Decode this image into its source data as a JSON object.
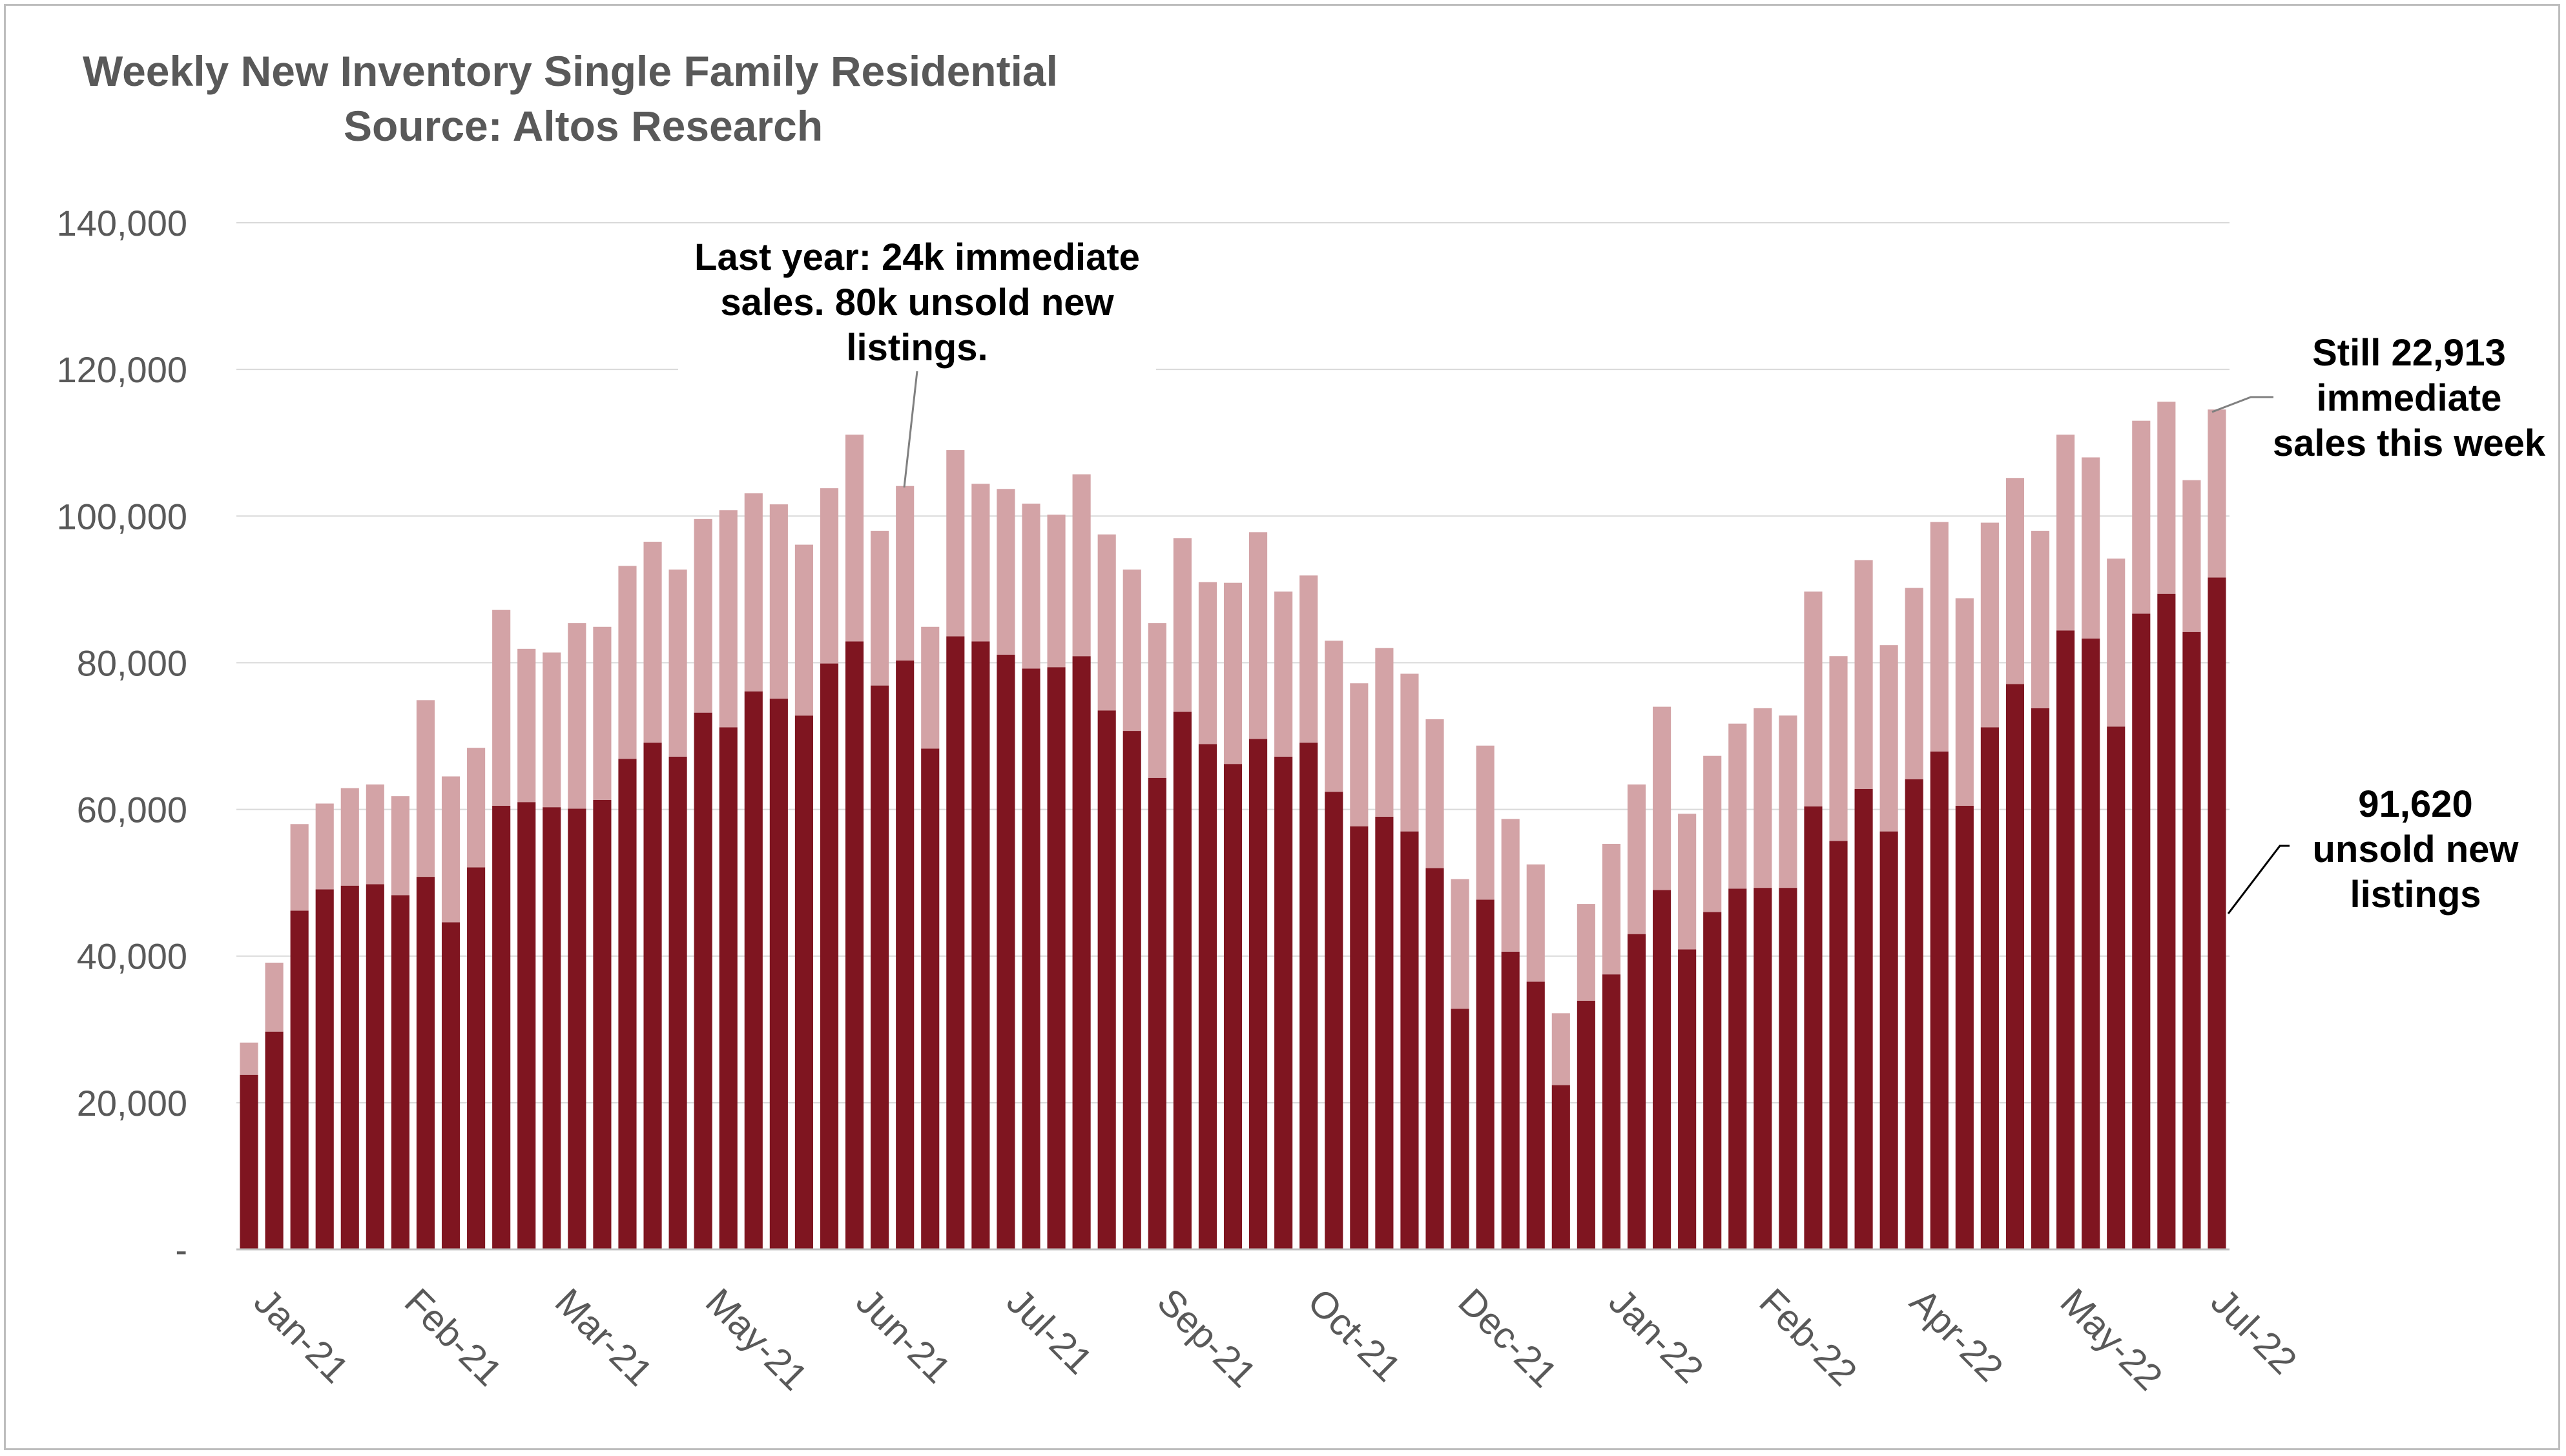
{
  "chart_data": {
    "type": "bar",
    "stacked": true,
    "title": "Weekly New Inventory Single Family Residential",
    "subtitle": "Source: Altos Research",
    "xlabel": "",
    "ylabel": "",
    "ylim": [
      0,
      140000
    ],
    "y_ticks": [
      "-",
      "20,000",
      "40,000",
      "60,000",
      "80,000",
      "100,000",
      "120,000",
      "140,000"
    ],
    "x_tick_labels": [
      "Jan-21",
      "Feb-21",
      "Mar-21",
      "May-21",
      "Jun-21",
      "Jul-21",
      "Sep-21",
      "Oct-21",
      "Dec-21",
      "Jan-22",
      "Feb-22",
      "Apr-22",
      "May-22",
      "Jul-22"
    ],
    "grid": true,
    "legend": "none",
    "colors": {
      "unsold": "#7f1520",
      "immediate": "#d3a3a6",
      "grid": "#d9d9d9",
      "axis_text": "#595959"
    },
    "series": [
      {
        "key": "unsold",
        "values": [
          23800,
          29700,
          46200,
          49100,
          49600,
          49800,
          48300,
          50800,
          44600,
          52100,
          60500,
          61000,
          60300,
          60100,
          61300,
          66900,
          69100,
          67200,
          73200,
          71200,
          76100,
          75100,
          72800,
          79900,
          82900,
          76900,
          80300,
          68300,
          83600,
          82900,
          81100,
          79200,
          79400,
          80900,
          73500,
          70700,
          64300,
          73300,
          68900,
          66200,
          69600,
          67200,
          69100,
          62400,
          57700,
          59000,
          57000,
          52000,
          32800,
          47700,
          40600,
          36500,
          22400,
          33900,
          37500,
          43000,
          49000,
          40900,
          46000,
          49200,
          49300,
          49300,
          60400,
          55700,
          62800,
          57000,
          64100,
          67900,
          60500,
          71200,
          77100,
          73800,
          84400,
          83300,
          71300,
          86700,
          89400,
          84200,
          91620
        ]
      },
      {
        "key": "immediate",
        "values": [
          4400,
          9400,
          11800,
          11700,
          13300,
          13600,
          13500,
          24100,
          19900,
          16300,
          26700,
          20900,
          21100,
          25300,
          23600,
          26300,
          27400,
          25500,
          26400,
          29600,
          27000,
          26500,
          23300,
          23900,
          28200,
          21100,
          23800,
          16600,
          25400,
          21500,
          22600,
          22500,
          20800,
          24800,
          24000,
          22000,
          21100,
          23700,
          22100,
          24700,
          28200,
          22500,
          22800,
          20600,
          19500,
          23000,
          21500,
          20300,
          17700,
          21000,
          18100,
          16000,
          9800,
          13200,
          17800,
          20400,
          25000,
          18500,
          21300,
          22500,
          24500,
          23500,
          29300,
          25200,
          31200,
          25400,
          26100,
          31300,
          28300,
          27900,
          28100,
          24200,
          26700,
          24700,
          22900,
          26300,
          26200,
          20700,
          22913
        ]
      }
    ],
    "annotations": {
      "last_year": "Last year: 24k immediate\nsales. 80k unsold new\nlistings.",
      "still": "Still  22,913\nimmediate\nsales this week",
      "unsold": "91,620\nunsold new\nlistings"
    }
  }
}
